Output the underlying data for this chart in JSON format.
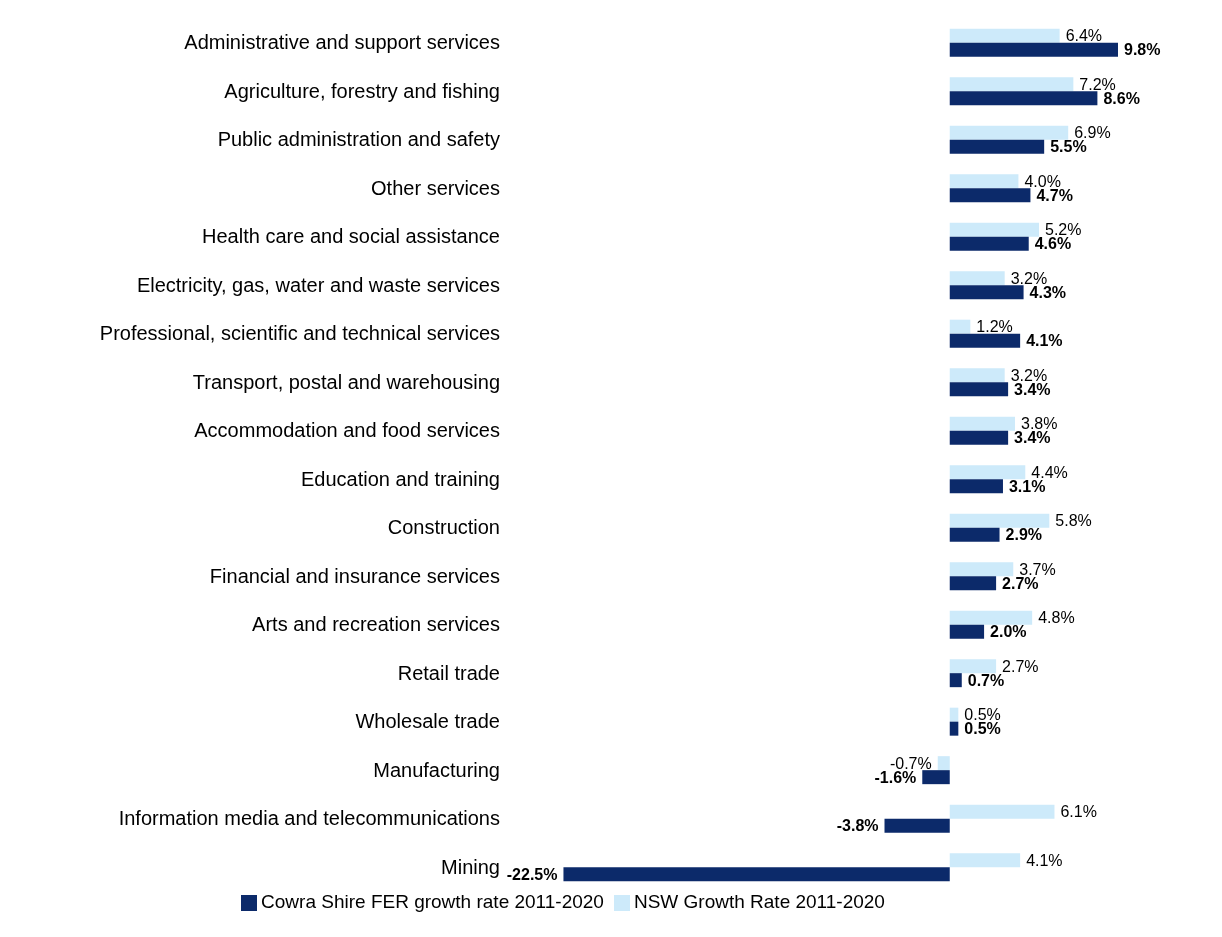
{
  "chart_data": {
    "type": "bar",
    "orientation": "horizontal",
    "categories": [
      "Administrative and support services",
      "Agriculture, forestry and fishing",
      "Public administration and safety",
      "Other services",
      "Health care and social assistance",
      "Electricity, gas, water and waste services",
      "Professional, scientific and technical services",
      "Transport, postal and warehousing",
      "Accommodation and food services",
      "Education and training",
      "Construction",
      "Financial and insurance services",
      "Arts and recreation services",
      "Retail trade",
      "Wholesale trade",
      "Manufacturing",
      "Information media and telecommunications",
      "Mining"
    ],
    "series": [
      {
        "name": "NSW Growth Rate 2011-2020",
        "color": "#cdeafa",
        "values": [
          6.4,
          7.2,
          6.9,
          4.0,
          5.2,
          3.2,
          1.2,
          3.2,
          3.8,
          4.4,
          5.8,
          3.7,
          4.8,
          2.7,
          0.5,
          -0.7,
          6.1,
          4.1
        ],
        "value_labels": [
          "6.4%",
          "7.2%",
          "6.9%",
          "4.0%",
          "5.2%",
          "3.2%",
          "1.2%",
          "3.2%",
          "3.8%",
          "4.4%",
          "5.8%",
          "3.7%",
          "4.8%",
          "2.7%",
          "0.5%",
          "-0.7%",
          "6.1%",
          "4.1%"
        ]
      },
      {
        "name": "Cowra Shire FER growth rate 2011-2020",
        "color": "#0c2a6a",
        "values": [
          9.8,
          8.6,
          5.5,
          4.7,
          4.6,
          4.3,
          4.1,
          3.4,
          3.4,
          3.1,
          2.9,
          2.7,
          2.0,
          0.7,
          0.5,
          -1.6,
          -3.8,
          -22.5
        ],
        "value_labels": [
          "9.8%",
          "8.6%",
          "5.5%",
          "4.7%",
          "4.6%",
          "4.3%",
          "4.1%",
          "3.4%",
          "3.4%",
          "3.1%",
          "2.9%",
          "2.7%",
          "2.0%",
          "0.7%",
          "0.5%",
          "-1.6%",
          "-3.8%",
          "-22.5%"
        ]
      }
    ],
    "legend": "bottom",
    "grid": false
  }
}
